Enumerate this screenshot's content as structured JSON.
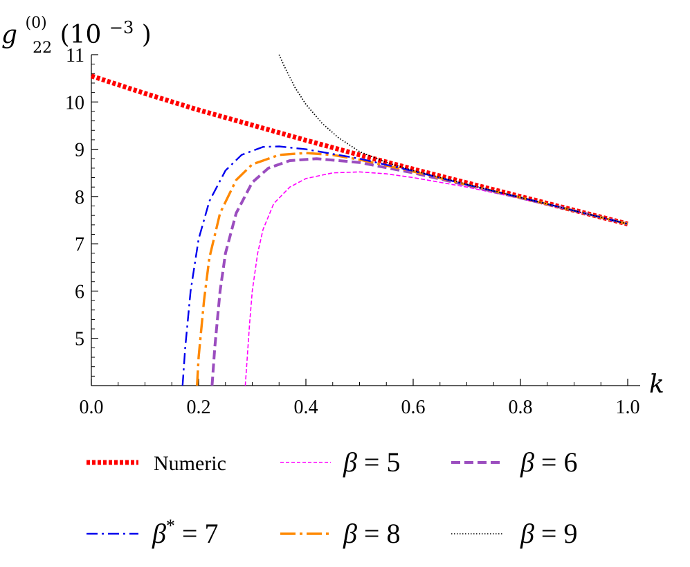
{
  "chart_data": {
    "type": "line",
    "ylabel_parts": {
      "base": "g",
      "sub": "22",
      "sup": "(0)",
      "unit": "(10",
      "unit_exp": "−3",
      "unit_close": ")"
    },
    "xlabel": "k",
    "xlim": [
      0.0,
      1.0
    ],
    "ylim": [
      4.0,
      11.0
    ],
    "xticks": [
      "0.0",
      "0.2",
      "0.4",
      "0.6",
      "0.8",
      "1.0"
    ],
    "yticks": [
      "5",
      "6",
      "7",
      "8",
      "9",
      "10",
      "11"
    ],
    "grid": false,
    "legend_position": "bottom",
    "series": [
      {
        "label": "Numeric",
        "color": "#ff0000",
        "style": "dotted-thick",
        "x": [
          0.0,
          0.1,
          0.2,
          0.3,
          0.4,
          0.5,
          0.6,
          0.7,
          0.8,
          0.9,
          1.0
        ],
        "y": [
          10.55,
          10.18,
          9.83,
          9.51,
          9.19,
          8.88,
          8.58,
          8.29,
          8.0,
          7.71,
          7.42
        ]
      },
      {
        "label_beta": "β",
        "label_eq": " = 5",
        "color": "#ff00ff",
        "style": "dashed-thin",
        "x": [
          0.287,
          0.29,
          0.295,
          0.3,
          0.31,
          0.32,
          0.34,
          0.37,
          0.4,
          0.45,
          0.5,
          0.55,
          0.6,
          0.7,
          0.8,
          0.9,
          1.0
        ],
        "y": [
          4.0,
          4.5,
          5.3,
          6.0,
          6.8,
          7.3,
          7.85,
          8.2,
          8.38,
          8.5,
          8.52,
          8.48,
          8.4,
          8.2,
          7.96,
          7.69,
          7.41
        ]
      },
      {
        "label_beta": "β",
        "label_eq": " = 6",
        "color": "#9b4dbf",
        "style": "dashed",
        "x": [
          0.225,
          0.23,
          0.24,
          0.25,
          0.27,
          0.3,
          0.33,
          0.37,
          0.42,
          0.5,
          0.6,
          0.7,
          0.8,
          0.9,
          1.0
        ],
        "y": [
          4.0,
          4.8,
          6.0,
          6.8,
          7.65,
          8.3,
          8.6,
          8.76,
          8.8,
          8.72,
          8.5,
          8.24,
          7.97,
          7.7,
          7.42
        ]
      },
      {
        "label_beta": "β",
        "label_star": "*",
        "label_eq": " = 7",
        "color": "#0000ee",
        "style": "dashdot",
        "x": [
          0.17,
          0.175,
          0.185,
          0.2,
          0.22,
          0.25,
          0.28,
          0.32,
          0.35,
          0.4,
          0.5,
          0.6,
          0.7,
          0.8,
          0.9,
          1.0
        ],
        "y": [
          4.0,
          4.8,
          6.0,
          7.1,
          7.9,
          8.55,
          8.88,
          9.05,
          9.06,
          9.0,
          8.8,
          8.54,
          8.25,
          7.98,
          7.7,
          7.42
        ]
      },
      {
        "label_beta": "β",
        "label_eq": " = 8",
        "color": "#ff8800",
        "style": "longdashdot",
        "x": [
          0.197,
          0.2,
          0.21,
          0.22,
          0.24,
          0.27,
          0.3,
          0.35,
          0.4,
          0.45,
          0.5,
          0.6,
          0.7,
          0.8,
          0.9,
          1.0
        ],
        "y": [
          4.0,
          4.6,
          5.8,
          6.7,
          7.65,
          8.35,
          8.68,
          8.88,
          8.92,
          8.88,
          8.78,
          8.53,
          8.25,
          7.98,
          7.7,
          7.42
        ]
      },
      {
        "label_beta": "β",
        "label_eq": " = 9",
        "color": "#000000",
        "style": "dotted-thin",
        "x": [
          0.35,
          0.36,
          0.38,
          0.4,
          0.43,
          0.46,
          0.5,
          0.55,
          0.6,
          0.7,
          0.8,
          0.9,
          1.0
        ],
        "y": [
          11.0,
          10.75,
          10.3,
          9.95,
          9.55,
          9.25,
          8.95,
          8.72,
          8.55,
          8.26,
          7.98,
          7.7,
          7.42
        ]
      }
    ]
  },
  "colors": {
    "numeric": "#ff0000",
    "beta5": "#ff00ff",
    "beta6": "#9b4dbf",
    "beta7": "#0000ee",
    "beta8": "#ff8800",
    "beta9": "#000000"
  }
}
